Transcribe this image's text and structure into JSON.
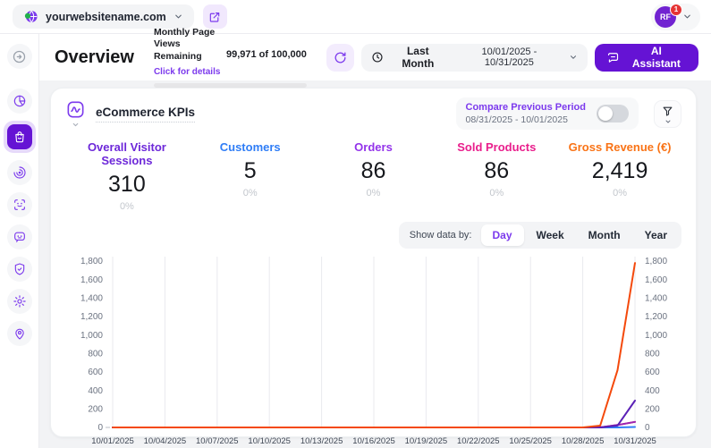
{
  "colors": {
    "accent": "#6513d4",
    "link": "#7c3aed"
  },
  "topbar": {
    "site_selector": {
      "domain": "yourwebsitename.com"
    },
    "account": {
      "initials": "RF",
      "badge": "1"
    }
  },
  "sidebar": {
    "items": [
      {
        "id": "analytics",
        "icon": "pie",
        "active": false
      },
      {
        "id": "ecommerce",
        "icon": "bag",
        "active": true
      },
      {
        "id": "behavior",
        "icon": "radar",
        "active": false
      },
      {
        "id": "visitor-recognition",
        "icon": "scan",
        "active": false
      },
      {
        "id": "chat",
        "icon": "bot",
        "active": false
      },
      {
        "id": "privacy",
        "icon": "shield",
        "active": false
      },
      {
        "id": "settings",
        "icon": "gear",
        "active": false
      },
      {
        "id": "visitor-location",
        "icon": "pin",
        "active": false
      }
    ]
  },
  "header": {
    "title": "Overview",
    "quota": {
      "label": "Monthly Page Views Remaining",
      "link": "Click for details",
      "usage": "99,971 of 100,000"
    },
    "period": {
      "label": "Last Month",
      "range": "10/01/2025 - 10/31/2025"
    },
    "ai_button": "AI Assistant"
  },
  "card": {
    "title": "eCommerce KPIs",
    "compare": {
      "label": "Compare Previous Period",
      "range": "08/31/2025 - 10/01/2025",
      "enabled": false
    }
  },
  "kpis": [
    {
      "label": "Overall Visitor Sessions",
      "value": "310",
      "delta": "0%",
      "color": "#6d28d9"
    },
    {
      "label": "Customers",
      "value": "5",
      "delta": "0%",
      "color": "#2f7df6"
    },
    {
      "label": "Orders",
      "value": "86",
      "delta": "0%",
      "color": "#9333ea"
    },
    {
      "label": "Sold Products",
      "value": "86",
      "delta": "0%",
      "color": "#e91e8c"
    },
    {
      "label": "Gross Revenue (€)",
      "value": "2,419",
      "delta": "0%",
      "color": "#f97316"
    }
  ],
  "granularity": {
    "label": "Show data by:",
    "options": [
      "Day",
      "Week",
      "Month",
      "Year"
    ],
    "selected": "Day"
  },
  "chart_data": {
    "type": "line",
    "x_ticks": [
      "10/01/2025",
      "10/04/2025",
      "10/07/2025",
      "10/10/2025",
      "10/13/2025",
      "10/16/2025",
      "10/19/2025",
      "10/22/2025",
      "10/25/2025",
      "10/28/2025",
      "10/31/2025"
    ],
    "ylim": [
      0,
      1800
    ],
    "ytick_step": 200,
    "grid": "vertical",
    "legend": "none",
    "series": [
      {
        "name": "Customers",
        "color": "#2f7df6",
        "values": [
          0,
          0,
          0,
          0,
          0,
          0,
          0,
          0,
          0,
          0,
          0,
          0,
          0,
          0,
          0,
          0,
          0,
          0,
          0,
          0,
          0,
          0,
          0,
          0,
          0,
          0,
          0,
          0,
          0,
          0,
          5
        ]
      },
      {
        "name": "Sold Products",
        "color": "#e91e8c",
        "values": [
          0,
          0,
          0,
          0,
          0,
          0,
          0,
          0,
          0,
          0,
          0,
          0,
          0,
          0,
          0,
          0,
          0,
          0,
          0,
          0,
          0,
          0,
          0,
          0,
          0,
          0,
          0,
          0,
          0,
          26,
          60
        ]
      },
      {
        "name": "Orders",
        "color": "#9c27b0",
        "values": [
          0,
          0,
          0,
          0,
          0,
          0,
          0,
          0,
          0,
          0,
          0,
          0,
          0,
          0,
          0,
          0,
          0,
          0,
          0,
          0,
          0,
          0,
          0,
          0,
          0,
          0,
          0,
          0,
          0,
          26,
          60
        ]
      },
      {
        "name": "Overall Visitor Sessions",
        "color": "#5b21b6",
        "values": [
          0,
          0,
          0,
          0,
          0,
          0,
          0,
          0,
          0,
          0,
          0,
          0,
          0,
          0,
          0,
          0,
          0,
          0,
          0,
          0,
          0,
          0,
          0,
          0,
          0,
          0,
          0,
          0,
          0,
          20,
          290
        ]
      },
      {
        "name": "Gross Revenue (€)",
        "color": "#f4490c",
        "values": [
          0,
          0,
          0,
          0,
          0,
          0,
          0,
          0,
          0,
          0,
          0,
          0,
          0,
          0,
          0,
          0,
          0,
          0,
          0,
          0,
          0,
          0,
          0,
          0,
          0,
          0,
          0,
          0,
          19,
          620,
          1780
        ]
      }
    ]
  }
}
